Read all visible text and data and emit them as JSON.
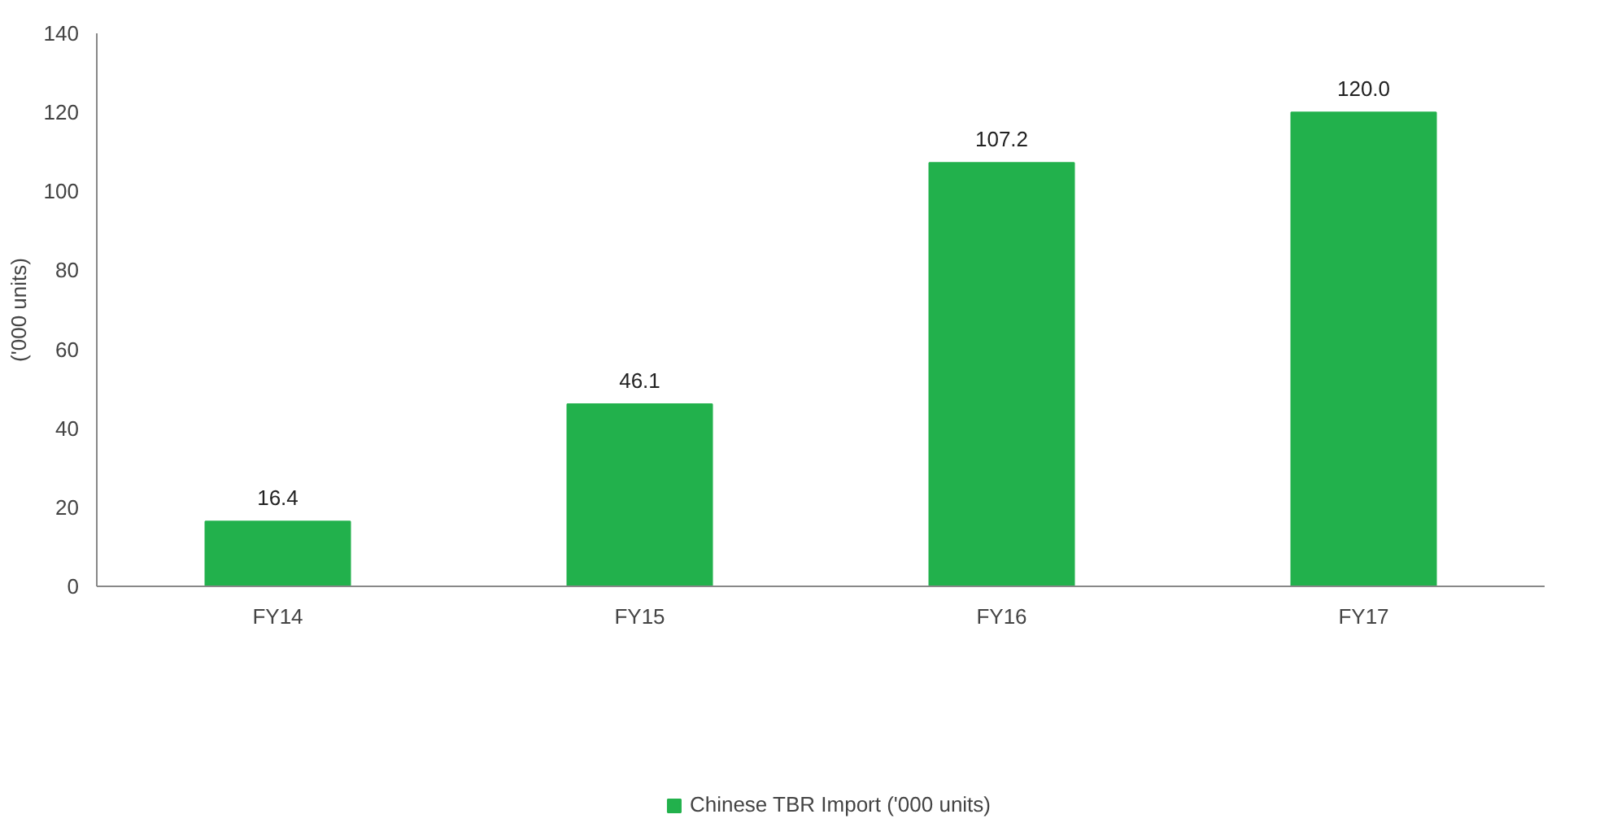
{
  "chart_data": {
    "type": "bar",
    "ylabel": "('000 units)",
    "categories": [
      "FY14",
      "FY15",
      "FY16",
      "FY17"
    ],
    "series": [
      {
        "name": "Chinese TBR Import ('000 units)",
        "color": "#22b14c",
        "values": [
          16.4,
          46.1,
          107.2,
          120.0
        ]
      }
    ],
    "value_labels": [
      "16.4",
      "46.1",
      "107.2",
      "120.0"
    ],
    "ylim": [
      0,
      140
    ],
    "yticks": [
      0,
      20,
      40,
      60,
      80,
      100,
      120,
      140
    ],
    "grid": false,
    "legend": "bottom"
  }
}
